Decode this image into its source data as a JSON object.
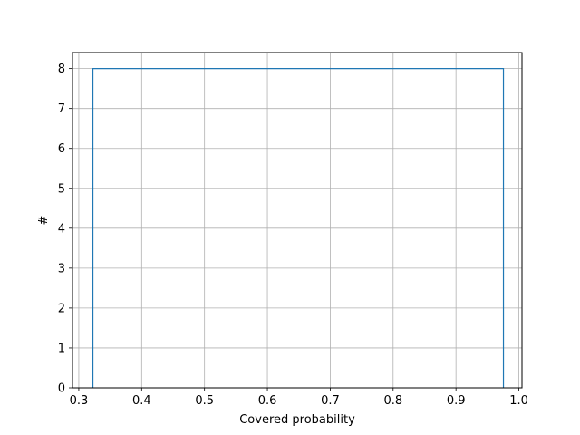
{
  "chart_data": {
    "type": "histogram",
    "title": "",
    "xlabel": "Covered probability",
    "ylabel": "#",
    "xlim": [
      0.29,
      1.005
    ],
    "ylim": [
      0,
      8.4
    ],
    "xticks": [
      "0.3",
      "0.4",
      "0.5",
      "0.6",
      "0.7",
      "0.8",
      "0.9",
      "1.0"
    ],
    "yticks": [
      "0",
      "1",
      "2",
      "3",
      "4",
      "5",
      "6",
      "7",
      "8"
    ],
    "grid": true,
    "histtype": "step",
    "series": [
      {
        "bin_edges": [
          0.3225,
          0.9755
        ],
        "counts": [
          8
        ],
        "color": "#1f77b4"
      }
    ]
  }
}
